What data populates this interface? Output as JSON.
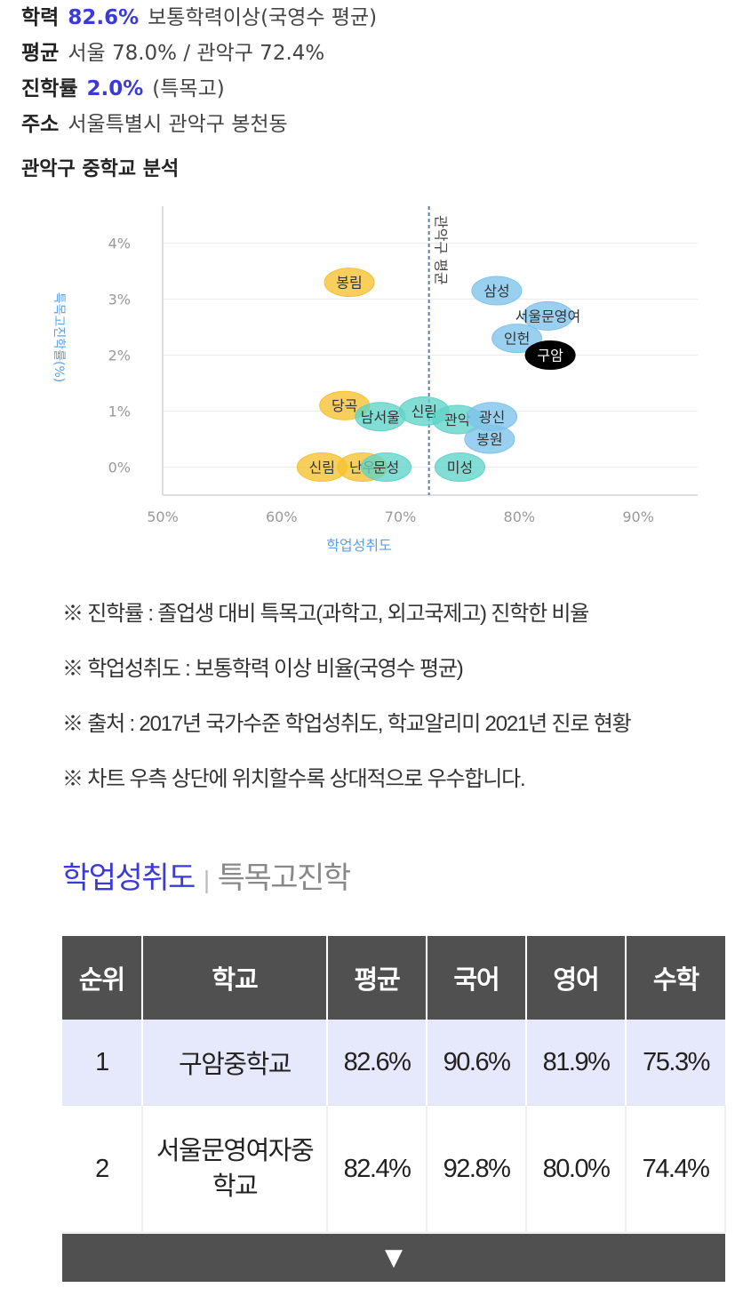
{
  "info": {
    "achievement": {
      "key": "학력",
      "highlight": "82.6%",
      "value": "보통학력이상(국영수 평균)"
    },
    "average": {
      "key": "평균",
      "value": "서울 78.0% / 관악구 72.4%"
    },
    "advance": {
      "key": "진학률",
      "highlight": "2.0%",
      "value": "(특목고)"
    },
    "address": {
      "key": "주소",
      "value": "서울특별시 관악구 봉천동"
    }
  },
  "section_title": "관악구 중학교 분석",
  "chart_data": {
    "type": "scatter",
    "xlabel": "학업성취도",
    "ylabel": "특목고진학률(%)",
    "xlim": [
      50,
      95
    ],
    "ylim": [
      -0.5,
      4.5
    ],
    "x_ticks": [
      {
        "value": 50,
        "label": "50%"
      },
      {
        "value": 60,
        "label": "60%"
      },
      {
        "value": 70,
        "label": "70%"
      },
      {
        "value": 80,
        "label": "80%"
      },
      {
        "value": 90,
        "label": "90%"
      }
    ],
    "y_ticks": [
      {
        "value": 0,
        "label": "0%"
      },
      {
        "value": 1,
        "label": "1%"
      },
      {
        "value": 2,
        "label": "2%"
      },
      {
        "value": 3,
        "label": "3%"
      },
      {
        "value": 4,
        "label": "4%"
      }
    ],
    "reference_line": {
      "x": 72.4,
      "label": "관악구 평균"
    },
    "colors": {
      "blue": "#7ec3ea",
      "teal": "#5fd3c8",
      "yellow": "#f6c12f",
      "selected": "#000000",
      "axis_label": "#5aa0e6"
    },
    "points": [
      {
        "label": "봉림",
        "x": 65.7,
        "y": 3.3,
        "color": "yellow"
      },
      {
        "label": "삼성",
        "x": 78.1,
        "y": 3.15,
        "color": "blue"
      },
      {
        "label": "서울문영여",
        "x": 82.4,
        "y": 2.7,
        "color": "blue"
      },
      {
        "label": "인헌",
        "x": 79.8,
        "y": 2.3,
        "color": "blue"
      },
      {
        "label": "구암",
        "x": 82.6,
        "y": 2.0,
        "color": "selected"
      },
      {
        "label": "당곡",
        "x": 65.3,
        "y": 1.1,
        "color": "yellow"
      },
      {
        "label": "남서울",
        "x": 68.3,
        "y": 0.9,
        "color": "teal"
      },
      {
        "label": "신림",
        "x": 72.0,
        "y": 1.0,
        "color": "teal"
      },
      {
        "label": "관악",
        "x": 74.8,
        "y": 0.85,
        "color": "teal"
      },
      {
        "label": "광신",
        "x": 77.7,
        "y": 0.9,
        "color": "blue"
      },
      {
        "label": "봉원",
        "x": 77.5,
        "y": 0.5,
        "color": "blue"
      },
      {
        "label": "신림",
        "x": 63.4,
        "y": 0.0,
        "color": "yellow"
      },
      {
        "label": "난우",
        "x": 66.8,
        "y": 0.0,
        "color": "yellow"
      },
      {
        "label": "문성",
        "x": 68.8,
        "y": 0.0,
        "color": "teal"
      },
      {
        "label": "미성",
        "x": 75.0,
        "y": 0.0,
        "color": "teal"
      }
    ]
  },
  "notes": [
    "※ 진학률 : 졸업생 대비 특목고(과학고, 외고국제고) 진학한 비율",
    "※ 학업성취도 : 보통학력 이상 비율(국영수 평균)",
    "※ 출처 : 2017년 국가수준 학업성취도, 학교알리미 2021년 진로 현황",
    "※ 차트 우측 상단에 위치할수록 상대적으로 우수합니다."
  ],
  "tabs": {
    "active": "학업성취도",
    "separator": "|",
    "other": "특목고진학"
  },
  "table": {
    "headers": [
      "순위",
      "학교",
      "평균",
      "국어",
      "영어",
      "수학"
    ],
    "rows": [
      [
        "1",
        "구암중학교",
        "82.6%",
        "90.6%",
        "81.9%",
        "75.3%"
      ],
      [
        "2",
        "서울문영여자중학교",
        "82.4%",
        "92.8%",
        "80.0%",
        "74.4%"
      ]
    ]
  },
  "more_button": "▼"
}
